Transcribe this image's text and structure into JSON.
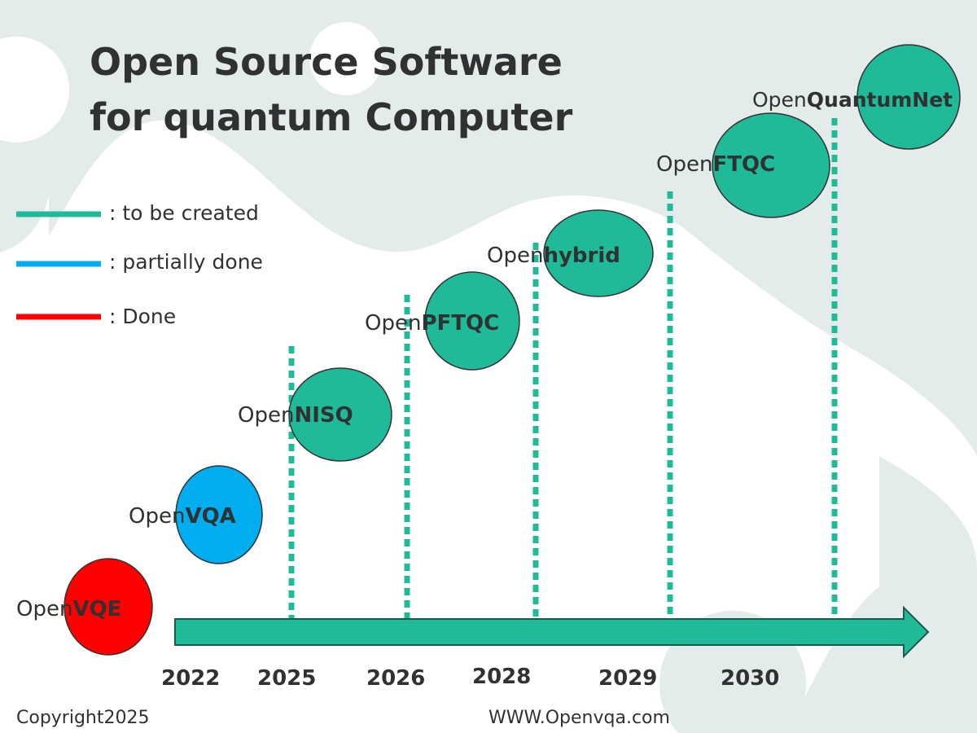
{
  "title": {
    "line1": "Open Source Software",
    "line2": "for quantum Computer"
  },
  "legend": [
    {
      "label": ": to be created",
      "color": "#1fbb98"
    },
    {
      "label": ": partially done",
      "color": "#00aeef"
    },
    {
      "label": ": Done",
      "color": "#ff0000"
    }
  ],
  "milestones": [
    {
      "prefix": "Open",
      "name": "VQE",
      "status": "done",
      "color": "#ff0000"
    },
    {
      "prefix": "Open",
      "name": "VQA",
      "status": "partially done",
      "color": "#00aeef"
    },
    {
      "prefix": "Open",
      "name": "NISQ",
      "status": "to be created",
      "color": "#1fbb98"
    },
    {
      "prefix": "Open",
      "name": "PFTQC",
      "status": "to be created",
      "color": "#1fbb98"
    },
    {
      "prefix": "Open",
      "name": "hybrid",
      "status": "to be created",
      "color": "#1fbb98"
    },
    {
      "prefix": "Open",
      "name": "FTQC",
      "status": "to be created",
      "color": "#1fbb98"
    },
    {
      "prefix": "Open",
      "name": "QuantumNet",
      "status": "to be created",
      "color": "#1fbb98"
    }
  ],
  "years": [
    "2022",
    "2025",
    "2026",
    "2028",
    "2029",
    "2030"
  ],
  "footer": {
    "copyright": "Copyright2025",
    "website": "WWW.Openvqa.com"
  }
}
